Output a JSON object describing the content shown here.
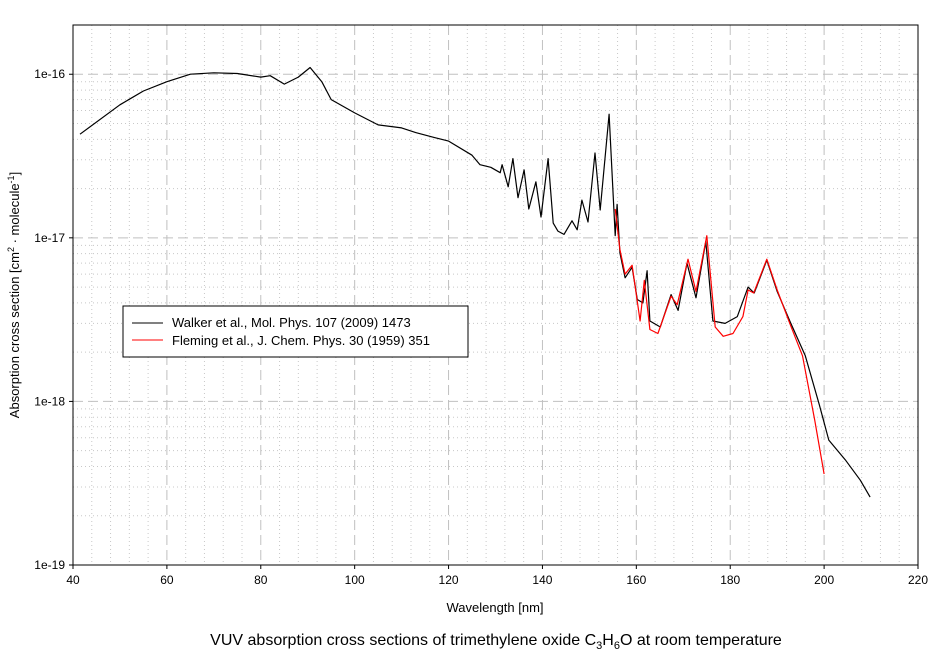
{
  "chart_data": {
    "type": "line",
    "title": "VUV absorption cross sections of trimethylene oxide",
    "title_formula": {
      "c": "C",
      "c_n": "3",
      "h": "H",
      "h_n": "6",
      "o": "O"
    },
    "title_suffix": "at room temperature",
    "xlabel": "Wavelength [nm]",
    "ylabel": "Absorption cross section [cm",
    "ylabel_sup1": "2",
    "ylabel_mid": " · molecule",
    "ylabel_sup2": "-1",
    "ylabel_end": "]",
    "xlim": [
      40,
      220
    ],
    "ylim": [
      1e-19,
      2e-16
    ],
    "yscale": "log",
    "grid": true,
    "legend_placement": "center-left",
    "x_ticks": [
      "40",
      "60",
      "80",
      "100",
      "120",
      "140",
      "160",
      "180",
      "200",
      "220"
    ],
    "y_ticks": [
      "1e-19",
      "1e-18",
      "1e-17",
      "1e-16"
    ],
    "series": [
      {
        "name": "Walker et al., Mol. Phys. 107 (2009) 1473",
        "color": "#000000",
        "points": [
          [
            41.5,
            4.3e-17
          ],
          [
            50,
            6.5e-17
          ],
          [
            55,
            7.9e-17
          ],
          [
            60,
            9e-17
          ],
          [
            65,
            1e-16
          ],
          [
            70,
            1.02e-16
          ],
          [
            75,
            1.01e-16
          ],
          [
            80,
            9.6e-17
          ],
          [
            82,
            9.8e-17
          ],
          [
            85,
            8.7e-17
          ],
          [
            88,
            9.6e-17
          ],
          [
            90.5,
            1.1e-16
          ],
          [
            93,
            9e-17
          ],
          [
            95,
            7e-17
          ],
          [
            100,
            5.8e-17
          ],
          [
            105,
            4.9e-17
          ],
          [
            110,
            4.7e-17
          ],
          [
            113,
            4.4e-17
          ],
          [
            117,
            4.1e-17
          ],
          [
            120,
            3.9e-17
          ],
          [
            125,
            3.2e-17
          ],
          [
            126.7,
            2.8e-17
          ],
          [
            129,
            2.7e-17
          ],
          [
            131,
            2.5e-17
          ],
          [
            131.4,
            2.8e-17
          ],
          [
            132.7,
            2.05e-17
          ],
          [
            133.7,
            3.05e-17
          ],
          [
            134.8,
            1.76e-17
          ],
          [
            136.1,
            2.6e-17
          ],
          [
            137.1,
            1.5e-17
          ],
          [
            138.6,
            2.2e-17
          ],
          [
            139.7,
            1.34e-17
          ],
          [
            141.2,
            3.05e-17
          ],
          [
            142.3,
            1.23e-17
          ],
          [
            143.3,
            1.1e-17
          ],
          [
            144.6,
            1.05e-17
          ],
          [
            146.3,
            1.27e-17
          ],
          [
            147.4,
            1.12e-17
          ],
          [
            148.4,
            1.7e-17
          ],
          [
            149.7,
            1.25e-17
          ],
          [
            151.2,
            3.3e-17
          ],
          [
            152.3,
            1.48e-17
          ],
          [
            154.2,
            5.7e-17
          ],
          [
            155.5,
            1.03e-17
          ],
          [
            155.9,
            1.6e-17
          ],
          [
            156.5,
            8.1e-18
          ],
          [
            157.6,
            5.7e-18
          ],
          [
            159.1,
            6.6e-18
          ],
          [
            160.2,
            4.2e-18
          ],
          [
            161.4,
            4e-18
          ],
          [
            162.3,
            6.3e-18
          ],
          [
            162.9,
            3.1e-18
          ],
          [
            165.1,
            2.85e-18
          ],
          [
            167.4,
            4.5e-18
          ],
          [
            168.9,
            3.6e-18
          ],
          [
            170.8,
            7e-18
          ],
          [
            172.7,
            4.3e-18
          ],
          [
            174.8,
            9.5e-18
          ],
          [
            176.3,
            3.1e-18
          ],
          [
            178.9,
            3e-18
          ],
          [
            181.5,
            3.3e-18
          ],
          [
            183.8,
            5e-18
          ],
          [
            185.1,
            4.6e-18
          ],
          [
            187.8,
            7.3e-18
          ],
          [
            190,
            4.7e-18
          ],
          [
            192.7,
            3.1e-18
          ],
          [
            196,
            1.9e-18
          ],
          [
            199,
            9.5e-19
          ],
          [
            201,
            5.8e-19
          ],
          [
            204.5,
            4.4e-19
          ],
          [
            207.7,
            3.3e-19
          ],
          [
            209.8,
            2.6e-19
          ]
        ]
      },
      {
        "name": "Fleming et al., J. Chem. Phys. 30 (1959) 351",
        "color": "#ff0000",
        "points": [
          [
            155.5,
            1.5e-17
          ],
          [
            156.5,
            8.5e-18
          ],
          [
            157.6,
            6e-18
          ],
          [
            159.1,
            6.8e-18
          ],
          [
            160.8,
            3.1e-18
          ],
          [
            161.7,
            5.5e-18
          ],
          [
            162.9,
            2.75e-18
          ],
          [
            164.6,
            2.6e-18
          ],
          [
            167.4,
            4.4e-18
          ],
          [
            168.7,
            3.9e-18
          ],
          [
            171,
            7.4e-18
          ],
          [
            172.7,
            4.7e-18
          ],
          [
            175,
            1.03e-17
          ],
          [
            176.8,
            2.85e-18
          ],
          [
            178.5,
            2.5e-18
          ],
          [
            180.6,
            2.6e-18
          ],
          [
            182.7,
            3.3e-18
          ],
          [
            183.8,
            4.8e-18
          ],
          [
            185,
            4.6e-18
          ],
          [
            187.8,
            7.4e-18
          ],
          [
            190,
            4.8e-18
          ],
          [
            192.7,
            3e-18
          ],
          [
            195.4,
            1.9e-18
          ],
          [
            198,
            7.7e-19
          ],
          [
            200,
            3.6e-19
          ]
        ]
      }
    ]
  }
}
